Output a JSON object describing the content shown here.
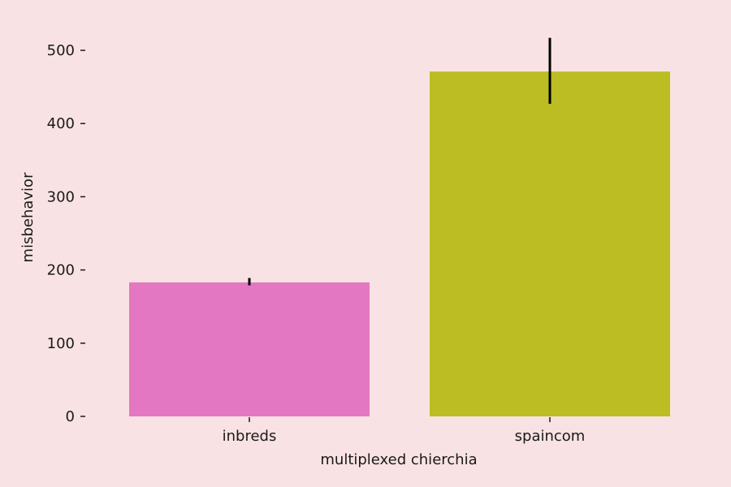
{
  "chart_data": {
    "type": "bar",
    "categories": [
      "inbreds",
      "spaincom"
    ],
    "values": [
      183,
      471
    ],
    "error_bars": [
      {
        "low": 179,
        "high": 189
      },
      {
        "low": 427,
        "high": 517
      }
    ],
    "colors": [
      "#e377c2",
      "#bcbd22"
    ],
    "error_bar_color": "#000000",
    "background": "#f9e2e3",
    "xlabel": "multiplexed chierchia",
    "ylabel": "misbehavior",
    "ylim": [
      0,
      528
    ],
    "yticks": [
      0,
      100,
      200,
      300,
      400,
      500
    ],
    "grid": false,
    "legend": "none"
  }
}
